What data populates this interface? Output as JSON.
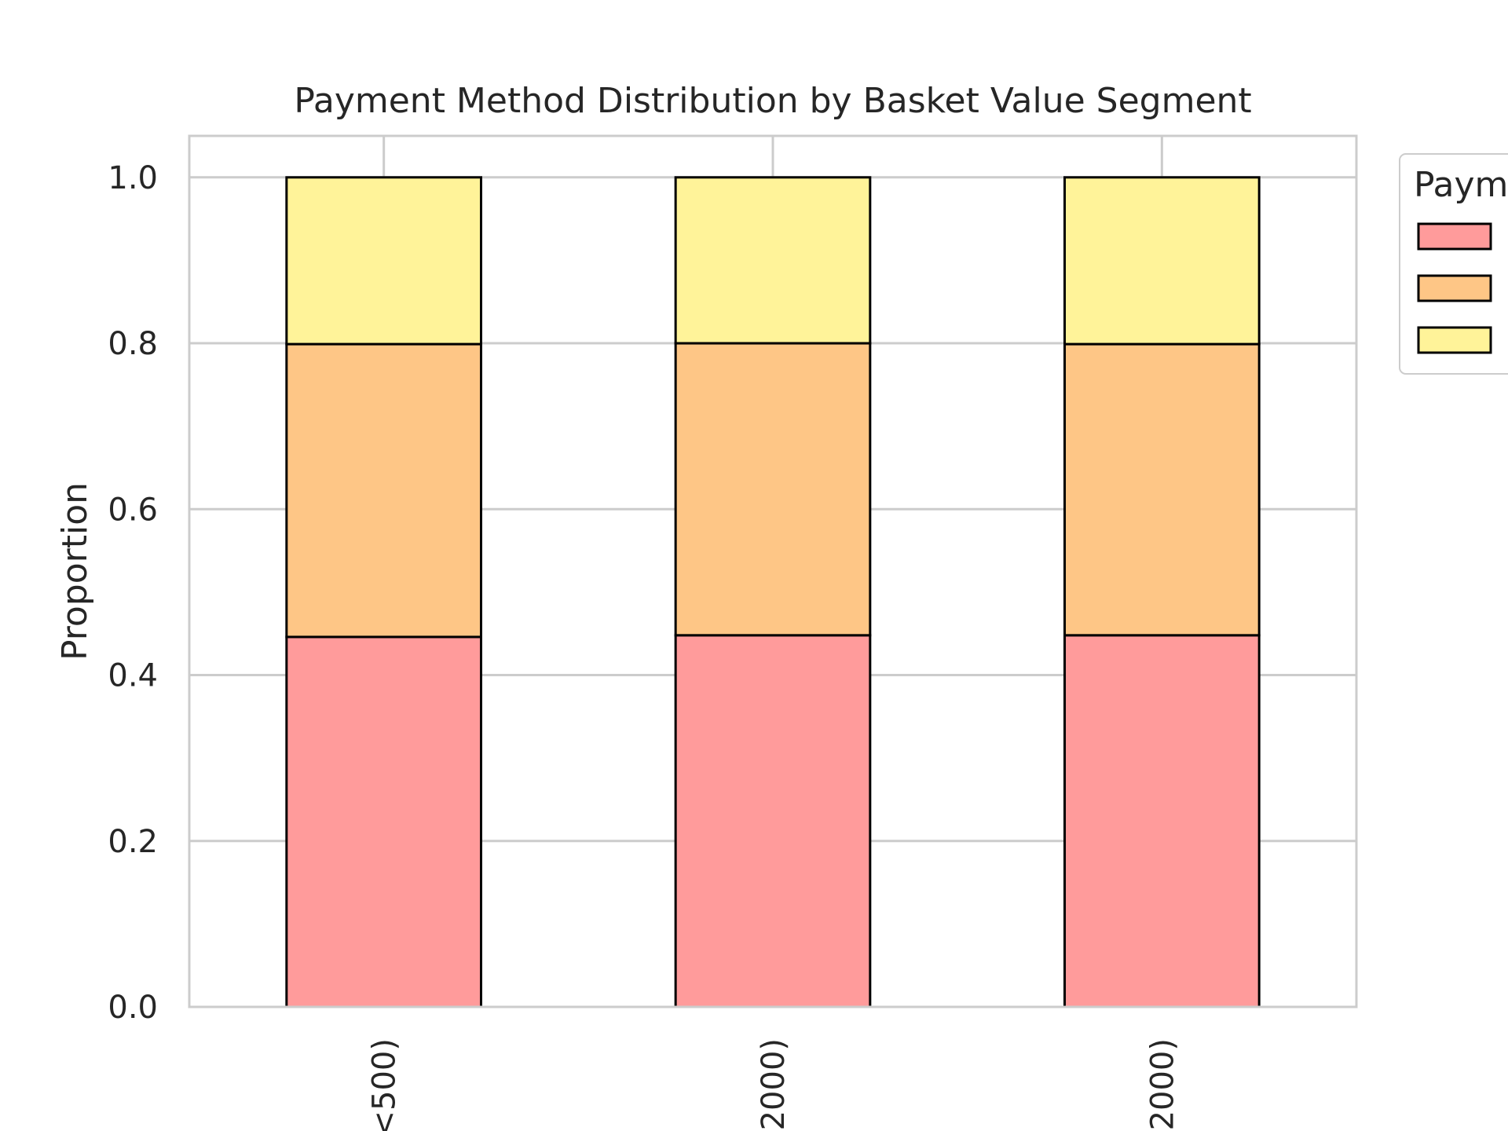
{
  "chart_data": {
    "type": "bar",
    "stacked": true,
    "title": "Payment Method Distribution by Basket Value Segment",
    "xlabel": "",
    "ylabel": "Proportion",
    "categories": [
      "<500)",
      "2000)",
      "2000)"
    ],
    "ylim": [
      0,
      1.05
    ],
    "yticks": [
      "0.0",
      "0.2",
      "0.4",
      "0.6",
      "0.8",
      "1.0"
    ],
    "grid": true,
    "legend": {
      "title": "Paym",
      "placement": "outside-top-right"
    },
    "series": [
      {
        "values": [
          0.446,
          0.448,
          0.448
        ],
        "color": "#ff9b9b"
      },
      {
        "values": [
          0.353,
          0.352,
          0.351
        ],
        "color": "#fec686"
      },
      {
        "values": [
          0.201,
          0.2,
          0.201
        ],
        "color": "#fff399"
      }
    ],
    "colors": {
      "grid": "#cccccc",
      "edge": "#000000",
      "text": "#262626"
    }
  }
}
